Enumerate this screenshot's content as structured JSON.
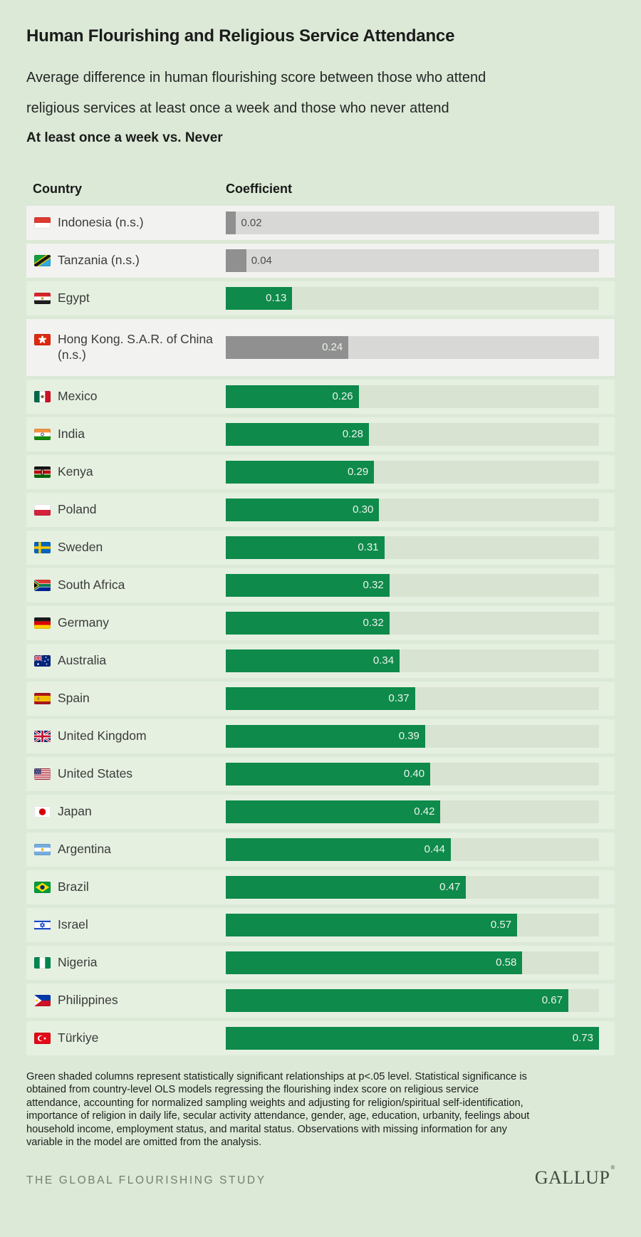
{
  "header": {
    "title": "Human Flourishing and Religious Service Attendance",
    "subtitle": "Average difference in human flourishing score between those who attend religious services at least once a week and those who never attend",
    "comparison_label": "At least once a week vs. Never"
  },
  "table": {
    "country_header": "Country",
    "coefficient_header": "Coefficient",
    "max_value": 0.73,
    "rows": [
      {
        "country": "Indonesia (n.s.)",
        "flag": "indonesia",
        "value": 0.02,
        "display": "0.02",
        "significant": false,
        "label_position": "outside"
      },
      {
        "country": "Tanzania (n.s.)",
        "flag": "tanzania",
        "value": 0.04,
        "display": "0.04",
        "significant": false,
        "label_position": "outside"
      },
      {
        "country": "Egypt",
        "flag": "egypt",
        "value": 0.13,
        "display": "0.13",
        "significant": true,
        "label_position": "inside"
      },
      {
        "country": "Hong Kong. S.A.R. of China (n.s.)",
        "flag": "hongkong",
        "value": 0.24,
        "display": "0.24",
        "significant": false,
        "label_position": "inside"
      },
      {
        "country": "Mexico",
        "flag": "mexico",
        "value": 0.26,
        "display": "0.26",
        "significant": true,
        "label_position": "inside"
      },
      {
        "country": "India",
        "flag": "india",
        "value": 0.28,
        "display": "0.28",
        "significant": true,
        "label_position": "inside"
      },
      {
        "country": "Kenya",
        "flag": "kenya",
        "value": 0.29,
        "display": "0.29",
        "significant": true,
        "label_position": "inside"
      },
      {
        "country": "Poland",
        "flag": "poland",
        "value": 0.3,
        "display": "0.30",
        "significant": true,
        "label_position": "inside"
      },
      {
        "country": "Sweden",
        "flag": "sweden",
        "value": 0.31,
        "display": "0.31",
        "significant": true,
        "label_position": "inside"
      },
      {
        "country": "South Africa",
        "flag": "southafrica",
        "value": 0.32,
        "display": "0.32",
        "significant": true,
        "label_position": "inside"
      },
      {
        "country": "Germany",
        "flag": "germany",
        "value": 0.32,
        "display": "0.32",
        "significant": true,
        "label_position": "inside"
      },
      {
        "country": "Australia",
        "flag": "australia",
        "value": 0.34,
        "display": "0.34",
        "significant": true,
        "label_position": "inside"
      },
      {
        "country": "Spain",
        "flag": "spain",
        "value": 0.37,
        "display": "0.37",
        "significant": true,
        "label_position": "inside"
      },
      {
        "country": "United Kingdom",
        "flag": "uk",
        "value": 0.39,
        "display": "0.39",
        "significant": true,
        "label_position": "inside"
      },
      {
        "country": "United States",
        "flag": "us",
        "value": 0.4,
        "display": "0.40",
        "significant": true,
        "label_position": "inside"
      },
      {
        "country": "Japan",
        "flag": "japan",
        "value": 0.42,
        "display": "0.42",
        "significant": true,
        "label_position": "inside"
      },
      {
        "country": "Argentina",
        "flag": "argentina",
        "value": 0.44,
        "display": "0.44",
        "significant": true,
        "label_position": "inside"
      },
      {
        "country": "Brazil",
        "flag": "brazil",
        "value": 0.47,
        "display": "0.47",
        "significant": true,
        "label_position": "inside"
      },
      {
        "country": "Israel",
        "flag": "israel",
        "value": 0.57,
        "display": "0.57",
        "significant": true,
        "label_position": "inside"
      },
      {
        "country": "Nigeria",
        "flag": "nigeria",
        "value": 0.58,
        "display": "0.58",
        "significant": true,
        "label_position": "inside"
      },
      {
        "country": "Philippines",
        "flag": "philippines",
        "value": 0.67,
        "display": "0.67",
        "significant": true,
        "label_position": "inside"
      },
      {
        "country": "Türkiye",
        "flag": "turkiye",
        "value": 0.73,
        "display": "0.73",
        "significant": true,
        "label_position": "inside"
      }
    ]
  },
  "colors": {
    "page_background": "#dbe9d6",
    "significant_bar": "#0e8a4b",
    "significant_track": "#d8e3d2",
    "significant_row": "#e5f0e1",
    "not_significant_bar": "#8f908f",
    "not_significant_track": "#d8d9d6",
    "not_significant_row": "#f2f2f0",
    "value_label_inside": "#eef4ed",
    "value_label_outside": "#4b4b4b"
  },
  "footnote": "Green shaded columns represent statistically significant relationships at p<.05 level. Statistical significance is obtained from country-level OLS models regressing the flourishing index score on religious service attendance, accounting for normalized sampling weights and adjusting for religion/spiritual self-identification, importance of religion in daily life, secular activity attendance, gender, age, education, urbanity, feelings about household income, employment status, and marital status. Observations with missing information for any variable in the model are omitted from the analysis.",
  "footer": {
    "study_name": "THE GLOBAL FLOURISHING STUDY",
    "brand": "GALLUP",
    "trademark": "®"
  },
  "chart_data": {
    "type": "bar",
    "orientation": "horizontal",
    "title": "Human Flourishing and Religious Service Attendance",
    "subtitle": "Average difference in human flourishing score between those who attend religious services at least once a week and those who never attend",
    "comparison": "At least once a week vs. Never",
    "xlabel": "Coefficient",
    "xlim": [
      0,
      0.73
    ],
    "grid": false,
    "legend": "none",
    "categories": [
      "Indonesia (n.s.)",
      "Tanzania (n.s.)",
      "Egypt",
      "Hong Kong. S.A.R. of China (n.s.)",
      "Mexico",
      "India",
      "Kenya",
      "Poland",
      "Sweden",
      "South Africa",
      "Germany",
      "Australia",
      "Spain",
      "United Kingdom",
      "United States",
      "Japan",
      "Argentina",
      "Brazil",
      "Israel",
      "Nigeria",
      "Philippines",
      "Türkiye"
    ],
    "values": [
      0.02,
      0.04,
      0.13,
      0.24,
      0.26,
      0.28,
      0.29,
      0.3,
      0.31,
      0.32,
      0.32,
      0.34,
      0.37,
      0.39,
      0.4,
      0.42,
      0.44,
      0.47,
      0.57,
      0.58,
      0.67,
      0.73
    ],
    "statistically_significant": [
      false,
      false,
      true,
      false,
      true,
      true,
      true,
      true,
      true,
      true,
      true,
      true,
      true,
      true,
      true,
      true,
      true,
      true,
      true,
      true,
      true,
      true
    ],
    "bar_colors": {
      "significant": "#0e8a4b",
      "not_significant": "#8f908f"
    }
  }
}
